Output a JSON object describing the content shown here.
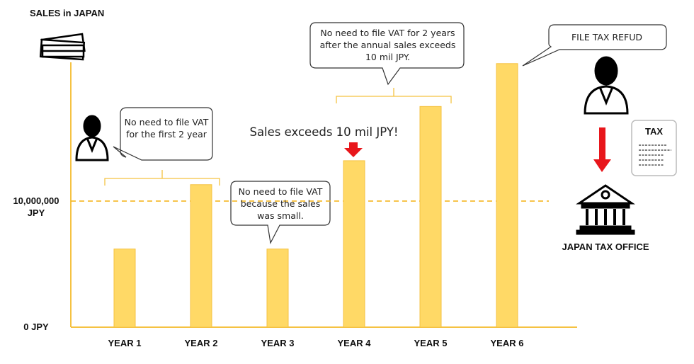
{
  "chart_data": {
    "type": "bar",
    "y_axis_title": "SALES in JAPAN",
    "categories": [
      "YEAR 1",
      "YEAR 2",
      "YEAR 3",
      "YEAR 4",
      "YEAR 5",
      "YEAR 6"
    ],
    "values": [
      6200000,
      11300000,
      6200000,
      13200000,
      17500000,
      20900000
    ],
    "color": "#ffd966",
    "ylim": [
      0,
      21000000
    ],
    "yticks": [
      {
        "value": 0,
        "label": "0 JPY"
      },
      {
        "value": 10000000,
        "label": "10,000,000 JPY"
      }
    ],
    "grid": true,
    "annotations": {
      "first_years": "No need to file VAT for the first 2 year",
      "small_sales": "No need to file VAT because the sales was small.",
      "after_exceed": "No need to file VAT for 2 years after the annual sales exceeds 10 mil JPY.",
      "exceeds": "Sales exceeds 10 mil JPY!",
      "refund": "FILE TAX REFUD",
      "tax_doc": "TAX",
      "office": "JAPAN TAX OFFICE"
    }
  }
}
